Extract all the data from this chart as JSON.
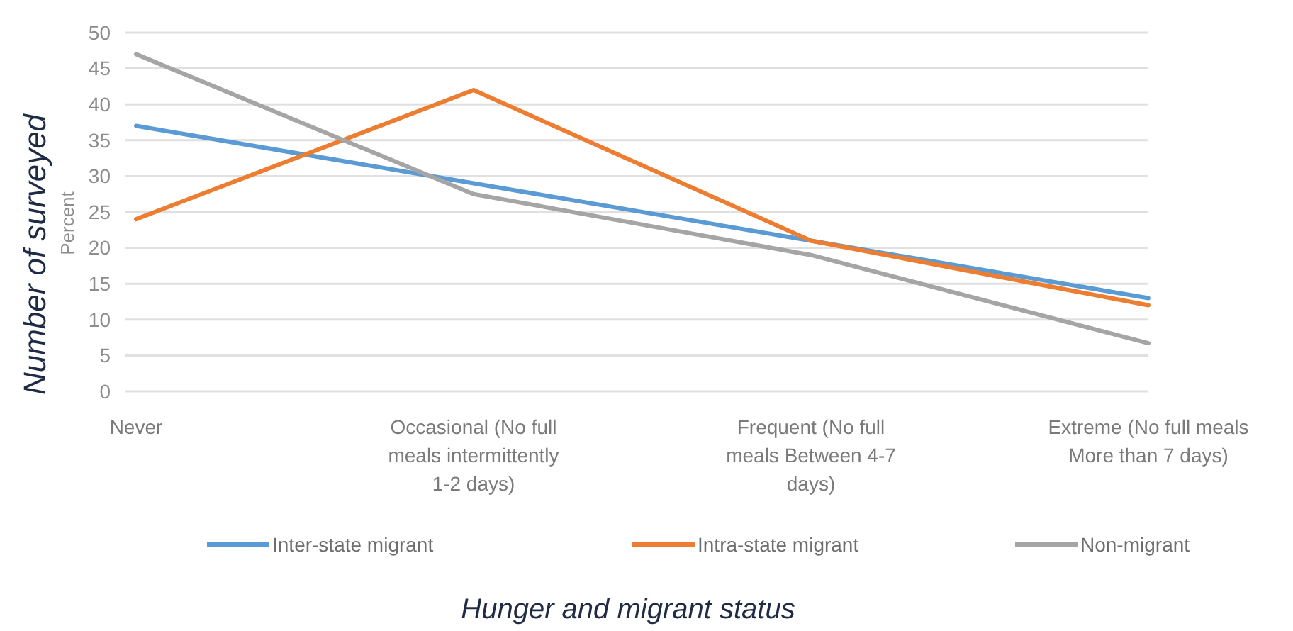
{
  "chart_data": {
    "type": "line",
    "xlabel": "Hunger and migrant status",
    "ylabel": "Number of surveyed",
    "annotations": [
      "Percent"
    ],
    "categories": [
      "Never",
      "Occasional (No full meals intermittently 1-2 days)",
      "Frequent (No full meals Between 4-7 days)",
      "Extreme (No full meals More than 7 days)"
    ],
    "series": [
      {
        "name": "Inter-state migrant",
        "color": "#5b9bd5",
        "values": [
          37,
          29,
          21,
          13
        ]
      },
      {
        "name": "Intra-state migrant",
        "color": "#ed7d31",
        "values": [
          24,
          42,
          21,
          12
        ]
      },
      {
        "name": "Non-migrant",
        "color": "#a5a5a5",
        "values": [
          47,
          27.5,
          19,
          6.7
        ]
      }
    ],
    "ylim": [
      0,
      50
    ],
    "yticks": [
      0,
      5,
      10,
      15,
      20,
      25,
      30,
      35,
      40,
      45,
      50
    ],
    "grid": "y",
    "legend": "bottom",
    "marker": "none",
    "line_style": "solid"
  }
}
